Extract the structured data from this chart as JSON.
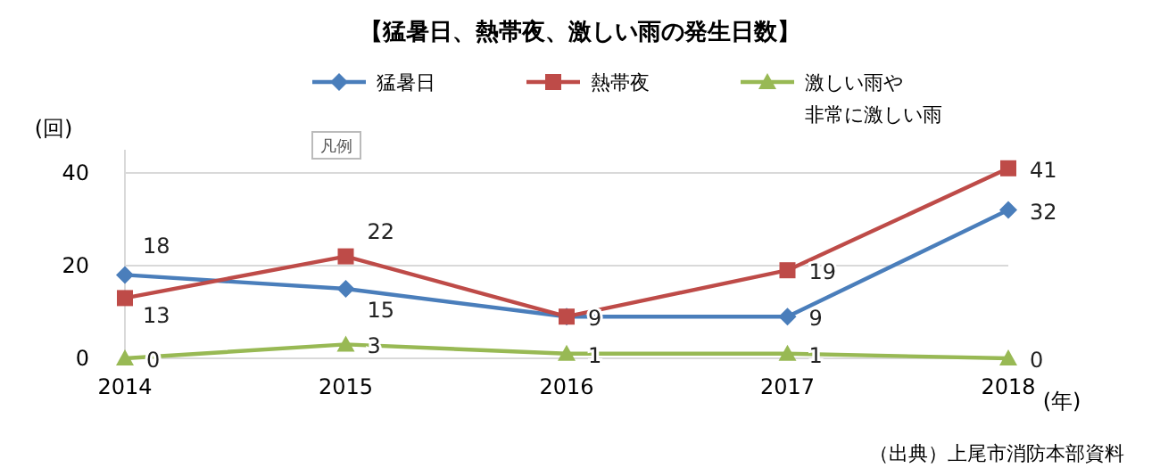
{
  "chart_data": {
    "type": "line",
    "title": "【猛暑日、熱帯夜、激しい雨の発生日数】",
    "ylabel": "(回)",
    "xlabel": "(年)",
    "categories": [
      "2014",
      "2015",
      "2016",
      "2017",
      "2018"
    ],
    "series": [
      {
        "name": "猛暑日",
        "color": "#4a7ebb",
        "marker": "diamond",
        "values": [
          18,
          15,
          9,
          9,
          32
        ],
        "value_labels": [
          "18",
          "15",
          null,
          "9",
          "32"
        ]
      },
      {
        "name": "熱帯夜",
        "color": "#be4b48",
        "marker": "square",
        "values": [
          13,
          22,
          9,
          19,
          41
        ],
        "value_labels": [
          "13",
          "22",
          "9",
          "19",
          "41"
        ]
      },
      {
        "name": "激しい雨や非常に激しい雨",
        "color": "#98b954",
        "marker": "triangle",
        "values": [
          0,
          3,
          1,
          1,
          0
        ],
        "value_labels": [
          "0",
          "3",
          "1",
          "1",
          "0"
        ]
      }
    ],
    "ylim": [
      0,
      45
    ],
    "yticks": [
      0,
      20,
      40
    ],
    "grid": "y",
    "legend": "top",
    "annotations": [
      "凡例",
      "（出典）上尾市消防本部資料"
    ]
  }
}
